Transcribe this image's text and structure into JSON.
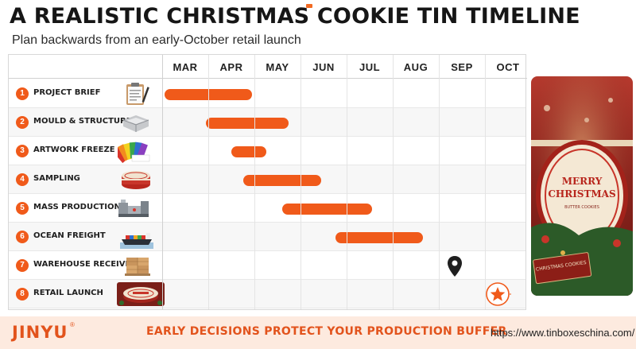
{
  "header": {
    "title": "A REALISTIC CHRISTMAS COOKIE TIN TIMELINE",
    "subtitle": "Plan backwards from an early-October retail launch"
  },
  "months": [
    "MAR",
    "APR",
    "MAY",
    "JUN",
    "JUL",
    "AUG",
    "SEP",
    "OCT"
  ],
  "tasks": [
    {
      "num": "1",
      "label": "PROJECT BRIEF",
      "start_month": 0.05,
      "end_month": 1.95,
      "thumb_icon": "clipboard-icon"
    },
    {
      "num": "2",
      "label": "MOULD & STRUCTURE",
      "start_month": 0.95,
      "end_month": 2.75,
      "thumb_icon": "tin-mould-icon"
    },
    {
      "num": "3",
      "label": "ARTWORK FREEZE",
      "start_month": 1.5,
      "end_month": 2.25,
      "thumb_icon": "pantone-swatch-icon"
    },
    {
      "num": "4",
      "label": "SAMPLING",
      "start_month": 1.75,
      "end_month": 3.45,
      "thumb_icon": "sample-tin-icon"
    },
    {
      "num": "5",
      "label": "MASS PRODUCTION",
      "start_month": 2.6,
      "end_month": 4.55,
      "thumb_icon": "production-line-icon"
    },
    {
      "num": "6",
      "label": "OCEAN FREIGHT",
      "start_month": 3.75,
      "end_month": 5.65,
      "thumb_icon": "cargo-ship-icon"
    },
    {
      "num": "7",
      "label": "WAREHOUSE RECEIVING",
      "marker": "location-pin-icon",
      "marker_month": 6.35,
      "thumb_icon": "pallet-boxes-icon"
    },
    {
      "num": "8",
      "label": "RETAIL LAUNCH",
      "marker": "star-icon",
      "marker_month": 7.3,
      "thumb_icon": "christmas-tin-icon"
    }
  ],
  "photo": {
    "tin_line1": "MERRY",
    "tin_line2": "CHRISTMAS",
    "tin_line3": "BUTTER COOKIES",
    "shelf_label": "CHRISTMAS COOKIES"
  },
  "footer": {
    "logo": "JINYU",
    "reg_mark": "®",
    "tagline": "EARLY DECISIONS PROTECT YOUR PRODUCTION BUFFER",
    "url": "https://www.tinboxeschina.com/"
  },
  "colors": {
    "accent": "#f05a1a",
    "footer_bg": "#fdeadf"
  }
}
